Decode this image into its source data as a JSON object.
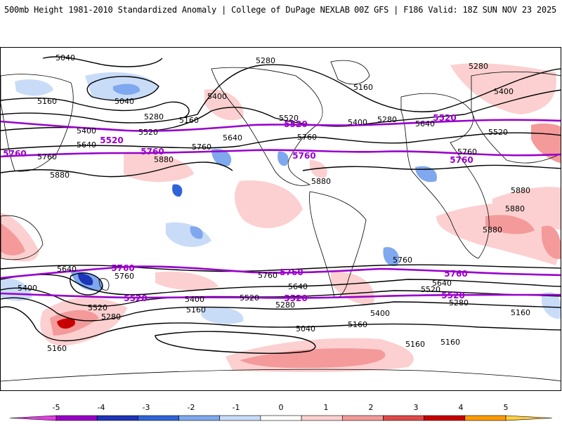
{
  "header": {
    "left": "500mb Height 1981-2010 Standardized Anomaly | College of DuPage NEXLAB",
    "right": "00Z GFS | F186 Valid: 18Z SUN NOV 23 2025"
  },
  "contours": {
    "black_labels": [
      "5040",
      "5160",
      "5280",
      "5400",
      "5520",
      "5640",
      "5760",
      "5880"
    ],
    "purple_labels": [
      "5520",
      "5760"
    ]
  },
  "colorbar": {
    "ticks": [
      "-5",
      "-4",
      "-3",
      "-2",
      "-1",
      "0",
      "1",
      "2",
      "3",
      "4",
      "5"
    ],
    "colors": [
      "#e040e0",
      "#9a00c8",
      "#1d35b8",
      "#2f64d8",
      "#7fa8ee",
      "#c8dcf8",
      "#ffffff",
      "#fcd0d0",
      "#f49a9a",
      "#e04848",
      "#c80000",
      "#ff9a00",
      "#ffd040"
    ]
  },
  "colors": {
    "contour": "#000000",
    "purple_contour": "#9900cc",
    "warm_light": "#fcd0d0",
    "warm_mid": "#f49a9a",
    "warm_strong": "#e04848",
    "warm_deep": "#c80000",
    "cool_light": "#c8dcf8",
    "cool_mid": "#7fa8ee",
    "cool_strong": "#2f64d8",
    "cool_deep": "#1d35b8"
  }
}
